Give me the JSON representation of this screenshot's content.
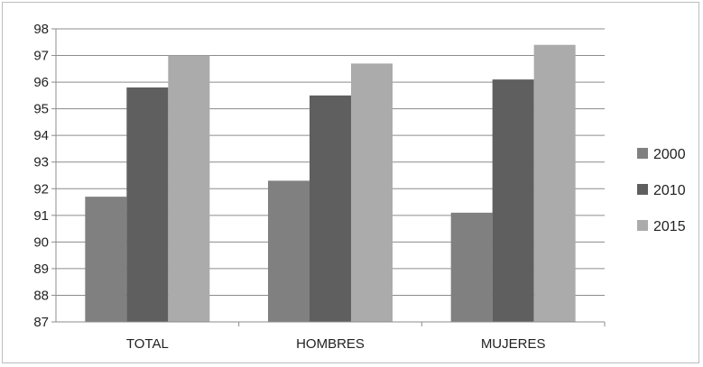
{
  "chart_data": {
    "type": "bar",
    "categories": [
      "TOTAL",
      "HOMBRES",
      "MUJERES"
    ],
    "series": [
      {
        "name": "2000",
        "values": [
          91.7,
          92.3,
          91.1
        ],
        "color": "#808080"
      },
      {
        "name": "2010",
        "values": [
          95.8,
          95.5,
          96.1
        ],
        "color": "#5f5f5f"
      },
      {
        "name": "2015",
        "values": [
          97.0,
          96.7,
          97.4
        ],
        "color": "#ababab"
      }
    ],
    "ylim": [
      87,
      98
    ],
    "yticks": [
      87,
      88,
      89,
      90,
      91,
      92,
      93,
      94,
      95,
      96,
      97,
      98
    ],
    "grid": true,
    "legend_position": "right",
    "title": "",
    "xlabel": "",
    "ylabel": ""
  }
}
